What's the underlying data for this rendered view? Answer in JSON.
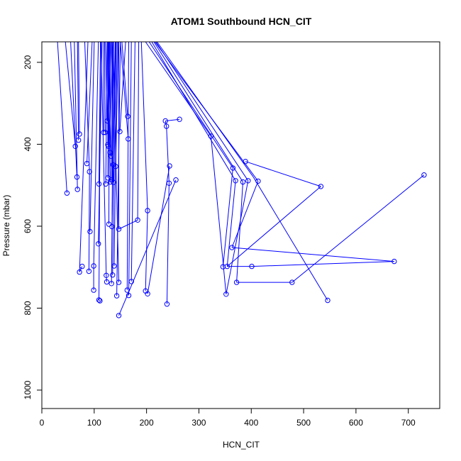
{
  "chart_data": {
    "type": "line",
    "title": "ATOM1 Southbound HCN_CIT",
    "xlabel": "HCN_CIT",
    "ylabel": "Pressure (mbar)",
    "xlim": [
      0,
      760
    ],
    "ylim": [
      1045,
      150
    ],
    "y_reversed": true,
    "grid": false,
    "legend": "none",
    "line_color": "#0000ff",
    "x_ticks": [
      "0",
      "100",
      "200",
      "300",
      "400",
      "500",
      "600",
      "700"
    ],
    "y_ticks": [
      "200",
      "400",
      "600",
      "800",
      "1000"
    ],
    "points": [
      {
        "x": 48,
        "y": 519
      },
      {
        "x": 64,
        "y": 405
      },
      {
        "x": 67,
        "y": 480
      },
      {
        "x": 68,
        "y": 510
      },
      {
        "x": 70,
        "y": 390
      },
      {
        "x": 72,
        "y": 375
      },
      {
        "x": 72,
        "y": 712
      },
      {
        "x": 77,
        "y": 698
      },
      {
        "x": 86,
        "y": 447
      },
      {
        "x": 90,
        "y": 710
      },
      {
        "x": 91,
        "y": 467
      },
      {
        "x": 92,
        "y": 613
      },
      {
        "x": 99,
        "y": 697
      },
      {
        "x": 99,
        "y": 756
      },
      {
        "x": 108,
        "y": 643
      },
      {
        "x": 109,
        "y": 497
      },
      {
        "x": 109,
        "y": 780
      },
      {
        "x": 111,
        "y": 782
      },
      {
        "x": 118,
        "y": 371
      },
      {
        "x": 121,
        "y": 371
      },
      {
        "x": 122,
        "y": 497
      },
      {
        "x": 123,
        "y": 720
      },
      {
        "x": 124,
        "y": 736
      },
      {
        "x": 125,
        "y": 343
      },
      {
        "x": 126,
        "y": 401
      },
      {
        "x": 126,
        "y": 482
      },
      {
        "x": 127,
        "y": 405
      },
      {
        "x": 128,
        "y": 595
      },
      {
        "x": 130,
        "y": 420
      },
      {
        "x": 131,
        "y": 492
      },
      {
        "x": 132,
        "y": 429
      },
      {
        "x": 133,
        "y": 487
      },
      {
        "x": 133,
        "y": 740
      },
      {
        "x": 134,
        "y": 601
      },
      {
        "x": 135,
        "y": 719
      },
      {
        "x": 136,
        "y": 450
      },
      {
        "x": 137,
        "y": 493
      },
      {
        "x": 138,
        "y": 697
      },
      {
        "x": 141,
        "y": 454
      },
      {
        "x": 143,
        "y": 770
      },
      {
        "x": 147,
        "y": 607
      },
      {
        "x": 147,
        "y": 737
      },
      {
        "x": 147,
        "y": 818
      },
      {
        "x": 149,
        "y": 369
      },
      {
        "x": 163,
        "y": 756
      },
      {
        "x": 164,
        "y": 332
      },
      {
        "x": 165,
        "y": 387
      },
      {
        "x": 166,
        "y": 769
      },
      {
        "x": 171,
        "y": 735
      },
      {
        "x": 183,
        "y": 585
      },
      {
        "x": 198,
        "y": 758
      },
      {
        "x": 202,
        "y": 765
      },
      {
        "x": 202,
        "y": 562
      },
      {
        "x": 236,
        "y": 343
      },
      {
        "x": 238,
        "y": 356
      },
      {
        "x": 239,
        "y": 790
      },
      {
        "x": 243,
        "y": 495
      },
      {
        "x": 244,
        "y": 453
      },
      {
        "x": 256,
        "y": 487
      },
      {
        "x": 263,
        "y": 339
      },
      {
        "x": 323,
        "y": 380
      },
      {
        "x": 346,
        "y": 699
      },
      {
        "x": 352,
        "y": 766
      },
      {
        "x": 354,
        "y": 698
      },
      {
        "x": 363,
        "y": 652
      },
      {
        "x": 365,
        "y": 458
      },
      {
        "x": 370,
        "y": 489
      },
      {
        "x": 372,
        "y": 737
      },
      {
        "x": 384,
        "y": 492
      },
      {
        "x": 389,
        "y": 442
      },
      {
        "x": 394,
        "y": 489
      },
      {
        "x": 401,
        "y": 698
      },
      {
        "x": 413,
        "y": 490
      },
      {
        "x": 478,
        "y": 737
      },
      {
        "x": 533,
        "y": 503
      },
      {
        "x": 546,
        "y": 781
      },
      {
        "x": 673,
        "y": 686
      },
      {
        "x": 730,
        "y": 475
      }
    ],
    "segments": [
      {
        "x": [
          30,
          48
        ],
        "y": [
          150,
          519
        ]
      },
      {
        "x": [
          45,
          64
        ],
        "y": [
          150,
          405
        ]
      },
      {
        "x": [
          55,
          67
        ],
        "y": [
          150,
          480
        ]
      },
      {
        "x": [
          62,
          68
        ],
        "y": [
          150,
          510
        ]
      },
      {
        "x": [
          68,
          70
        ],
        "y": [
          150,
          390
        ]
      },
      {
        "x": [
          70,
          72
        ],
        "y": [
          150,
          375
        ]
      },
      {
        "x": [
          88,
          72,
          77
        ],
        "y": [
          150,
          712,
          698
        ]
      },
      {
        "x": [
          96,
          86
        ],
        "y": [
          150,
          447
        ]
      },
      {
        "x": [
          82,
          91,
          90
        ],
        "y": [
          150,
          467,
          710
        ]
      },
      {
        "x": [
          100,
          92
        ],
        "y": [
          150,
          613
        ]
      },
      {
        "x": [
          108,
          99,
          99
        ],
        "y": [
          150,
          697,
          756
        ]
      },
      {
        "x": [
          115,
          108
        ],
        "y": [
          150,
          643
        ]
      },
      {
        "x": [
          112,
          109
        ],
        "y": [
          150,
          497
        ]
      },
      {
        "x": [
          112,
          109,
          111
        ],
        "y": [
          150,
          780,
          782
        ]
      },
      {
        "x": [
          118,
          118
        ],
        "y": [
          150,
          371
        ]
      },
      {
        "x": [
          120,
          121
        ],
        "y": [
          150,
          371
        ]
      },
      {
        "x": [
          125,
          122
        ],
        "y": [
          150,
          497
        ]
      },
      {
        "x": [
          113,
          123,
          124
        ],
        "y": [
          150,
          720,
          736
        ]
      },
      {
        "x": [
          122,
          125
        ],
        "y": [
          150,
          343
        ]
      },
      {
        "x": [
          126,
          126
        ],
        "y": [
          150,
          401
        ]
      },
      {
        "x": [
          128,
          126
        ],
        "y": [
          150,
          482
        ]
      },
      {
        "x": [
          132,
          127
        ],
        "y": [
          150,
          405
        ]
      },
      {
        "x": [
          129,
          128
        ],
        "y": [
          150,
          595
        ]
      },
      {
        "x": [
          135,
          130
        ],
        "y": [
          150,
          420
        ]
      },
      {
        "x": [
          127,
          131
        ],
        "y": [
          150,
          492
        ]
      },
      {
        "x": [
          130,
          132
        ],
        "y": [
          150,
          429
        ]
      },
      {
        "x": [
          136,
          133
        ],
        "y": [
          150,
          487
        ]
      },
      {
        "x": [
          137,
          133
        ],
        "y": [
          150,
          740
        ]
      },
      {
        "x": [
          140,
          134
        ],
        "y": [
          150,
          601
        ]
      },
      {
        "x": [
          142,
          135
        ],
        "y": [
          150,
          719
        ]
      },
      {
        "x": [
          141,
          136
        ],
        "y": [
          150,
          450
        ]
      },
      {
        "x": [
          133,
          137
        ],
        "y": [
          150,
          493
        ]
      },
      {
        "x": [
          144,
          138
        ],
        "y": [
          150,
          697
        ]
      },
      {
        "x": [
          146,
          141
        ],
        "y": [
          150,
          454
        ]
      },
      {
        "x": [
          150,
          143
        ],
        "y": [
          150,
          770
        ]
      },
      {
        "x": [
          147,
          147
        ],
        "y": [
          150,
          607
        ]
      },
      {
        "x": [
          136,
          147
        ],
        "y": [
          150,
          737
        ]
      },
      {
        "x": [
          160,
          149
        ],
        "y": [
          150,
          369
        ]
      },
      {
        "x": [
          153,
          164
        ],
        "y": [
          150,
          332
        ]
      },
      {
        "x": [
          150,
          165
        ],
        "y": [
          150,
          387
        ]
      },
      {
        "x": [
          166,
          163
        ],
        "y": [
          150,
          756
        ]
      },
      {
        "x": [
          171,
          166
        ],
        "y": [
          150,
          769
        ]
      },
      {
        "x": [
          178,
          171
        ],
        "y": [
          150,
          735
        ]
      },
      {
        "x": [
          185,
          183,
          147
        ],
        "y": [
          150,
          585,
          607
        ]
      },
      {
        "x": [
          190,
          202,
          198
        ],
        "y": [
          150,
          562,
          758
        ]
      },
      {
        "x": [
          244,
          202
        ],
        "y": [
          453,
          765
        ]
      },
      {
        "x": [
          256,
          147
        ],
        "y": [
          487,
          818
        ]
      },
      {
        "x": [
          236,
          238
        ],
        "y": [
          343,
          356
        ]
      },
      {
        "x": [
          243,
          239
        ],
        "y": [
          495,
          790
        ]
      },
      {
        "x": [
          263,
          236
        ],
        "y": [
          339,
          343
        ]
      },
      {
        "x": [
          238,
          243
        ],
        "y": [
          356,
          495
        ]
      },
      {
        "x": [
          198,
          323
        ],
        "y": [
          150,
          380
        ]
      },
      {
        "x": [
          323,
          352
        ],
        "y": [
          380,
          766
        ]
      },
      {
        "x": [
          205,
          365
        ],
        "y": [
          150,
          458
        ]
      },
      {
        "x": [
          365,
          346
        ],
        "y": [
          458,
          699
        ]
      },
      {
        "x": [
          210,
          370
        ],
        "y": [
          150,
          489
        ]
      },
      {
        "x": [
          370,
          354
        ],
        "y": [
          489,
          698
        ]
      },
      {
        "x": [
          214,
          384
        ],
        "y": [
          150,
          492
        ]
      },
      {
        "x": [
          384,
          372
        ],
        "y": [
          492,
          737
        ]
      },
      {
        "x": [
          372,
          478
        ],
        "y": [
          737,
          737
        ]
      },
      {
        "x": [
          478,
          730
        ],
        "y": [
          737,
          475
        ]
      },
      {
        "x": [
          216,
          413
        ],
        "y": [
          150,
          490
        ]
      },
      {
        "x": [
          413,
          363
        ],
        "y": [
          490,
          652
        ]
      },
      {
        "x": [
          363,
          673
        ],
        "y": [
          652,
          686
        ]
      },
      {
        "x": [
          673,
          401
        ],
        "y": [
          686,
          698
        ]
      },
      {
        "x": [
          401,
          354
        ],
        "y": [
          698,
          698
        ]
      },
      {
        "x": [
          389,
          533
        ],
        "y": [
          442,
          503
        ]
      },
      {
        "x": [
          533,
          354
        ],
        "y": [
          503,
          698
        ]
      },
      {
        "x": [
          218,
          394
        ],
        "y": [
          150,
          489
        ]
      },
      {
        "x": [
          394,
          352
        ],
        "y": [
          489,
          766
        ]
      },
      {
        "x": [
          220,
          404
        ],
        "y": [
          150,
          480
        ]
      },
      {
        "x": [
          404,
          546
        ],
        "y": [
          480,
          781
        ]
      }
    ]
  }
}
